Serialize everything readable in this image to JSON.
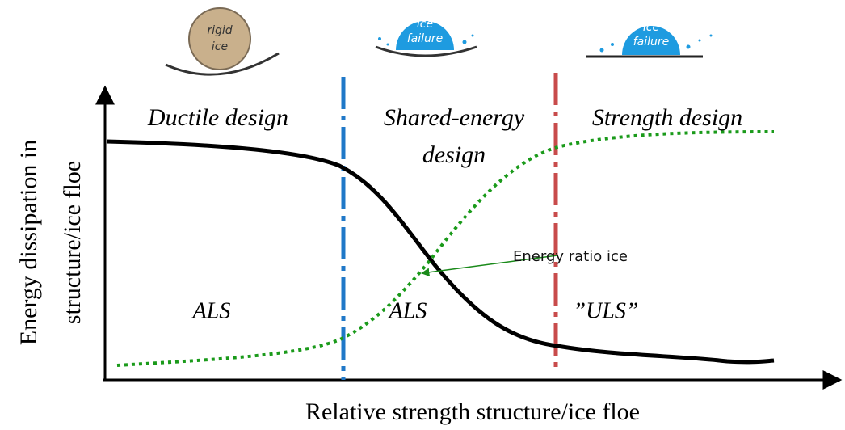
{
  "icons": [
    {
      "label": [
        "rigid",
        "ice"
      ]
    },
    {
      "label": [
        "ice",
        "failure"
      ]
    },
    {
      "label": [
        "ice",
        "failure"
      ]
    }
  ],
  "regions": [
    {
      "title": [
        "Ductile design"
      ],
      "limit_state": "ALS"
    },
    {
      "title": [
        "Shared-energy",
        "design"
      ],
      "limit_state": "ALS"
    },
    {
      "title": [
        "Strength design"
      ],
      "limit_state": "”ULS”"
    }
  ],
  "annotation": "Energy ratio ice",
  "y_axis_label": [
    "Energy  dissipation  in",
    "structure/ice floe"
  ],
  "x_axis_label": "Relative strength structure/ice floe"
}
